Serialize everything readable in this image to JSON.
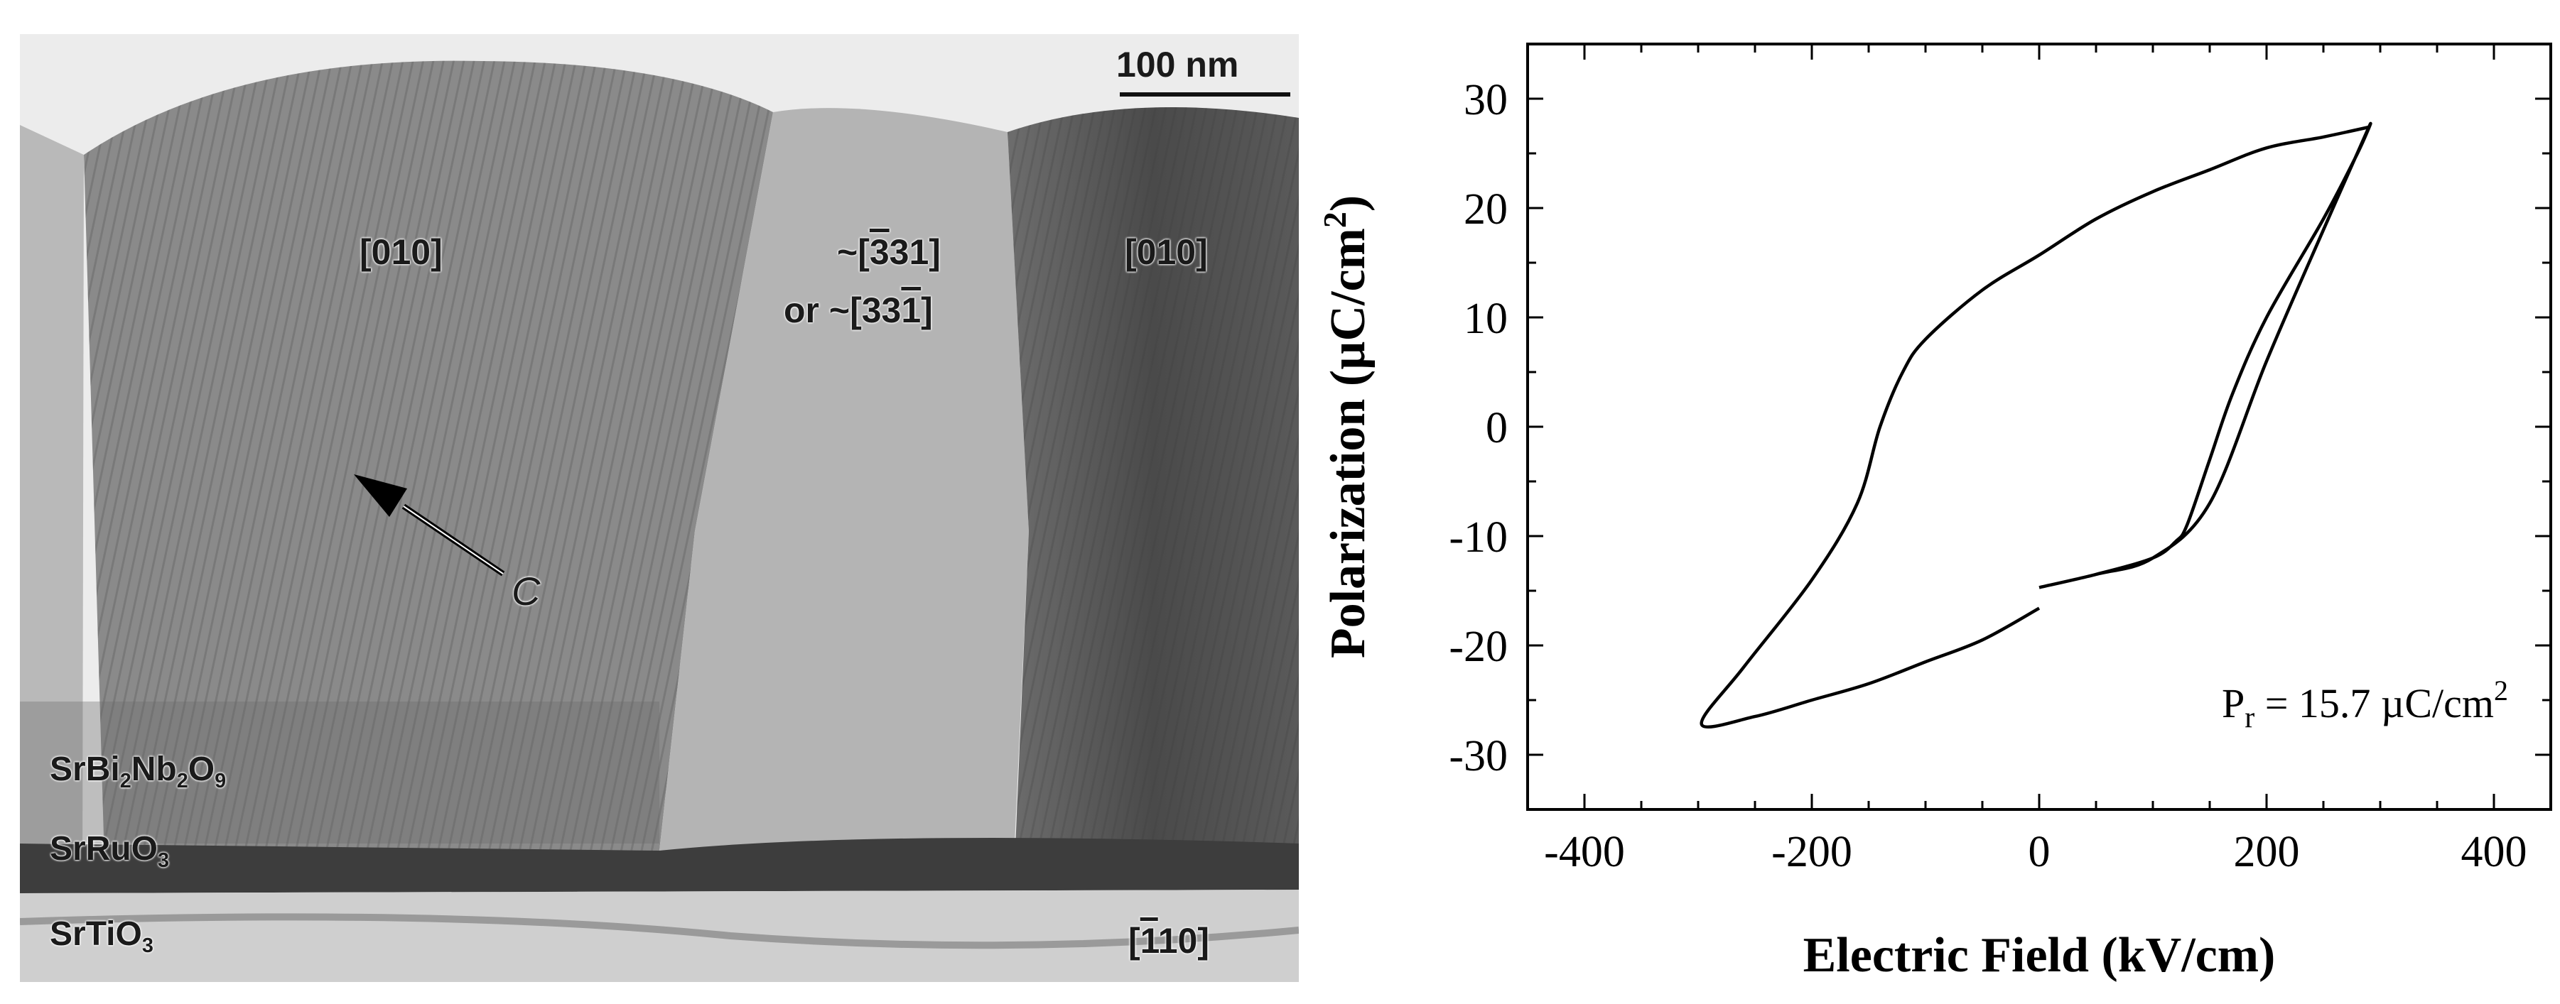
{
  "micrograph": {
    "scale_bar": "100 nm",
    "grain_left": "[010]",
    "grain_right": "[010]",
    "grain_middle": {
      "line1": "~[331]",
      "line2": "or ~[331]"
    },
    "c_axis": "C",
    "layers": {
      "sbn": {
        "base1": "SrBi",
        "sub1": "2",
        "base2": "Nb",
        "sub2": "2",
        "base3": "O",
        "sub3": "9"
      },
      "sro": {
        "base": "SrRuO",
        "sub": "3"
      },
      "sto": {
        "base": "SrTiO",
        "sub": "3"
      }
    },
    "substrate_direction": "[110]"
  },
  "chart_data": {
    "type": "line",
    "title": "",
    "xlabel": "Electric Field (kV/cm)",
    "ylabel": "Polarization (µC/cm²)",
    "xlim": [
      -450,
      450
    ],
    "ylim": [
      -35,
      35
    ],
    "xticks": [
      -400,
      -200,
      0,
      200,
      400
    ],
    "yticks": [
      -30,
      -20,
      -10,
      0,
      10,
      20,
      30
    ],
    "grid": false,
    "annotation": "P_r = 15.7 µC/cm²",
    "series": [
      {
        "x": [
          0,
          50,
          100,
          150,
          200,
          250,
          290,
          280,
          250,
          200,
          170,
          150,
          130,
          120,
          100,
          50,
          0
        ],
        "y": [
          -14.7,
          -13.5,
          -12,
          -7,
          6,
          18,
          27.4,
          25,
          19,
          10,
          3,
          -3,
          -9,
          -10.5,
          -12,
          -13.5,
          -14.7
        ]
      },
      {
        "x": [
          0,
          -50,
          -100,
          -150,
          -200,
          -250,
          -297,
          -260,
          -200,
          -160,
          -140,
          -120,
          -100,
          -50,
          0,
          50,
          100,
          150,
          200,
          250,
          290
        ],
        "y": [
          -16.6,
          -19.5,
          -21.5,
          -23.5,
          -25,
          -26.5,
          -27.2,
          -22,
          -14,
          -7,
          0,
          5,
          8,
          12.5,
          15.7,
          19,
          21.5,
          23.5,
          25.5,
          26.5,
          27.4
        ]
      }
    ]
  }
}
